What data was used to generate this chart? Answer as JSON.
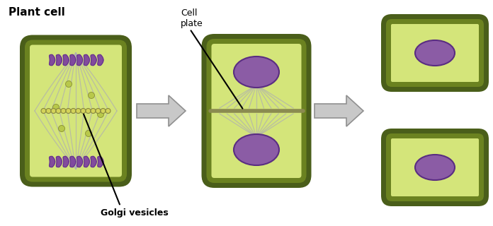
{
  "title": "Plant cell",
  "label_cell_plate": "Cell\nplate",
  "label_golgi": "Golgi vesicles",
  "colors": {
    "outer_wall": "#4A5E1A",
    "inner_wall": "#6B8220",
    "cytoplasm": "#D4E57A",
    "nucleus": "#8B5CA5",
    "nucleus_dark": "#5A2D82",
    "spindle": "#B0B0B0",
    "chromosome": "#7B3FA0",
    "arrow_fill": "#C8C8C8",
    "arrow_edge": "#909090",
    "cell_plate": "#8B8B50",
    "vesicle_fill": "#D4D45A",
    "vesicle_edge": "#888840",
    "background": "#FFFFFF",
    "text_color": "#000000"
  },
  "figsize": [
    6.96,
    3.2
  ],
  "dpi": 100
}
